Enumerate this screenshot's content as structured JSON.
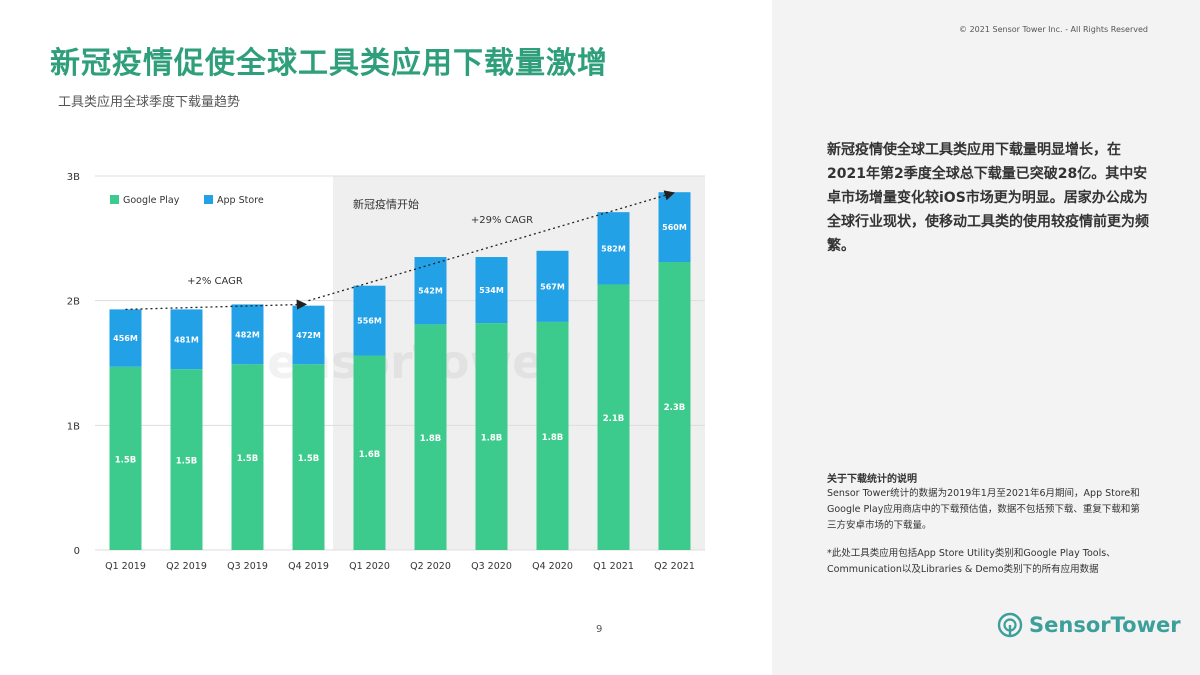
{
  "slide": {
    "title": "新冠疫情促使全球工具类应用下载量激增",
    "subtitle": "工具类应用全球季度下载量趋势",
    "copyright": "© 2021 Sensor Tower Inc. - All Rights Reserved",
    "summary": "新冠疫情使全球工具类应用下载量明显增长，在2021年第2季度全球总下载量已突破28亿。其中安卓市场增量变化较iOS市场更为明显。居家办公成为全球行业现状，使移动工具类的使用较疫情前更为频繁。",
    "note_title": "关于下载统计的说明",
    "note_body": "Sensor Tower统计的数据为2019年1月至2021年6月期间，App Store和Google Play应用商店中的下载预估值，数据不包括预下载、重复下载和第三方安卓市场的下载量。",
    "footnote": "*此处工具类应用包括App Store Utility类别和Google Play Tools、Communication以及Libraries & Demo类别下的所有应用数据",
    "page_number": "9",
    "logo_text": "SensorTower",
    "watermark": "SensorTower",
    "colors": {
      "title": "#2e9f7a",
      "google_play": "#3dcb8d",
      "app_store": "#22a1e6",
      "shade": "#efefef",
      "logo": "#3c9f9a"
    }
  },
  "chart_data": {
    "type": "bar",
    "stacked": true,
    "categories": [
      "Q1 2019",
      "Q2 2019",
      "Q3 2019",
      "Q4 2019",
      "Q1 2020",
      "Q2 2020",
      "Q3 2020",
      "Q4 2020",
      "Q1 2021",
      "Q2 2021"
    ],
    "series": [
      {
        "name": "Google Play",
        "values": [
          1.47,
          1.45,
          1.49,
          1.49,
          1.56,
          1.81,
          1.82,
          1.83,
          2.13,
          2.31
        ],
        "labels": [
          "1.5B",
          "1.5B",
          "1.5B",
          "1.5B",
          "1.6B",
          "1.8B",
          "1.8B",
          "1.8B",
          "2.1B",
          "2.3B"
        ]
      },
      {
        "name": "App Store",
        "values": [
          0.46,
          0.48,
          0.48,
          0.47,
          0.56,
          0.54,
          0.53,
          0.57,
          0.58,
          0.56
        ],
        "labels": [
          "456M",
          "481M",
          "482M",
          "472M",
          "556M",
          "542M",
          "534M",
          "567M",
          "582M",
          "560M"
        ]
      }
    ],
    "yticks": [
      "0",
      "1B",
      "2B",
      "3B"
    ],
    "ylim": [
      0,
      3
    ],
    "legend_position": "top-left",
    "grid": true,
    "annotations": [
      {
        "text": "新冠疫情开始",
        "from_category": "Q1 2020"
      },
      {
        "text": "+2% CAGR",
        "from": "Q1 2019",
        "to": "Q4 2019"
      },
      {
        "text": "+29% CAGR",
        "from": "Q4 2019",
        "to": "Q2 2021"
      }
    ]
  }
}
